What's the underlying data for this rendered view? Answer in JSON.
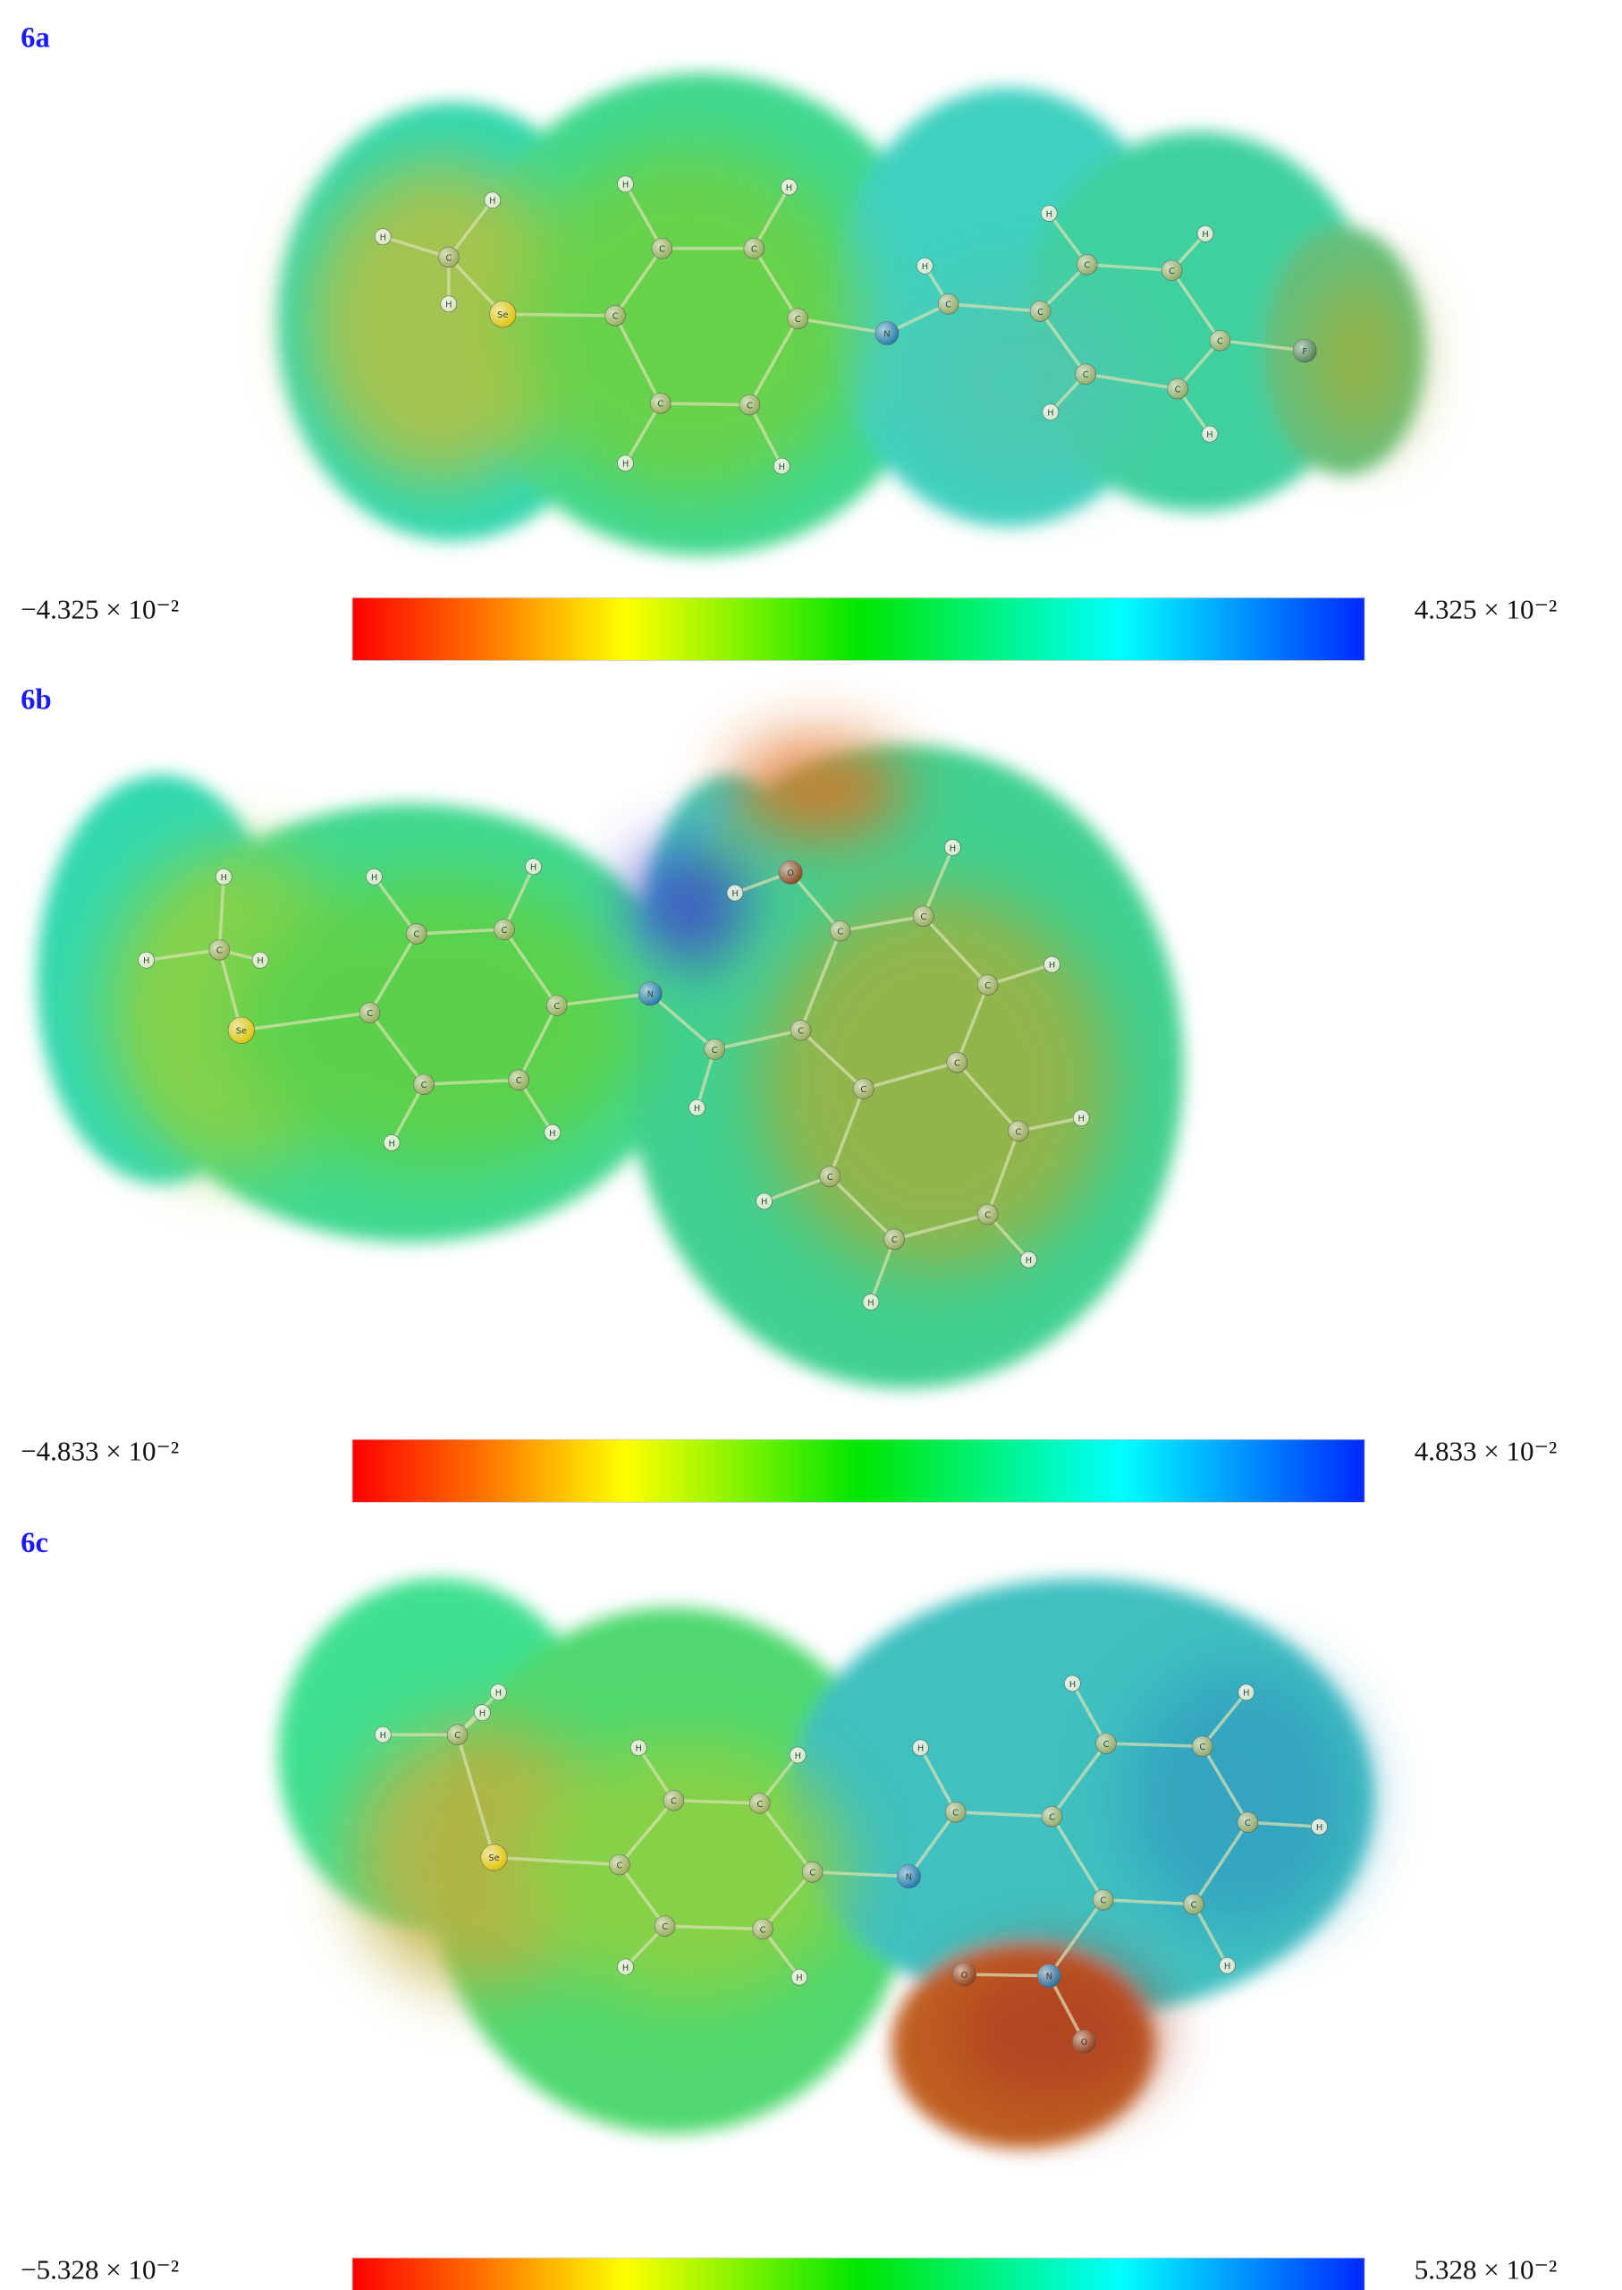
{
  "panels": [
    {
      "label": "6a",
      "min_label": "−4.325 × 10⁻²",
      "max_label": "4.325 × 10⁻²",
      "atoms": [
        "H",
        "H",
        "C",
        "H",
        "Se",
        "C",
        "C",
        "H",
        "C",
        "H",
        "C",
        "C",
        "H",
        "C",
        "H",
        "N",
        "C",
        "H",
        "C",
        "C",
        "H",
        "C",
        "H",
        "C",
        "F",
        "C",
        "H",
        "C",
        "H"
      ]
    },
    {
      "label": "6b",
      "min_label": "−4.833 × 10⁻²",
      "max_label": "4.833 × 10⁻²",
      "atoms": [
        "H",
        "H",
        "C",
        "H",
        "Se",
        "C",
        "C",
        "H",
        "C",
        "H",
        "C",
        "C",
        "H",
        "C",
        "H",
        "N",
        "C",
        "H",
        "C",
        "C",
        "O",
        "H",
        "C",
        "H",
        "C",
        "H",
        "C",
        "C",
        "C",
        "H",
        "C",
        "H",
        "C",
        "H",
        "C",
        "H"
      ]
    },
    {
      "label": "6c",
      "min_label": "−5.328 × 10⁻²",
      "max_label": "5.328 × 10⁻²",
      "atoms": [
        "H",
        "H",
        "H",
        "C",
        "Se",
        "C",
        "C",
        "H",
        "C",
        "H",
        "C",
        "C",
        "H",
        "C",
        "H",
        "N",
        "C",
        "H",
        "C",
        "C",
        "H",
        "C",
        "H",
        "C",
        "H",
        "C",
        "H",
        "C",
        "N",
        "O",
        "O"
      ]
    }
  ]
}
